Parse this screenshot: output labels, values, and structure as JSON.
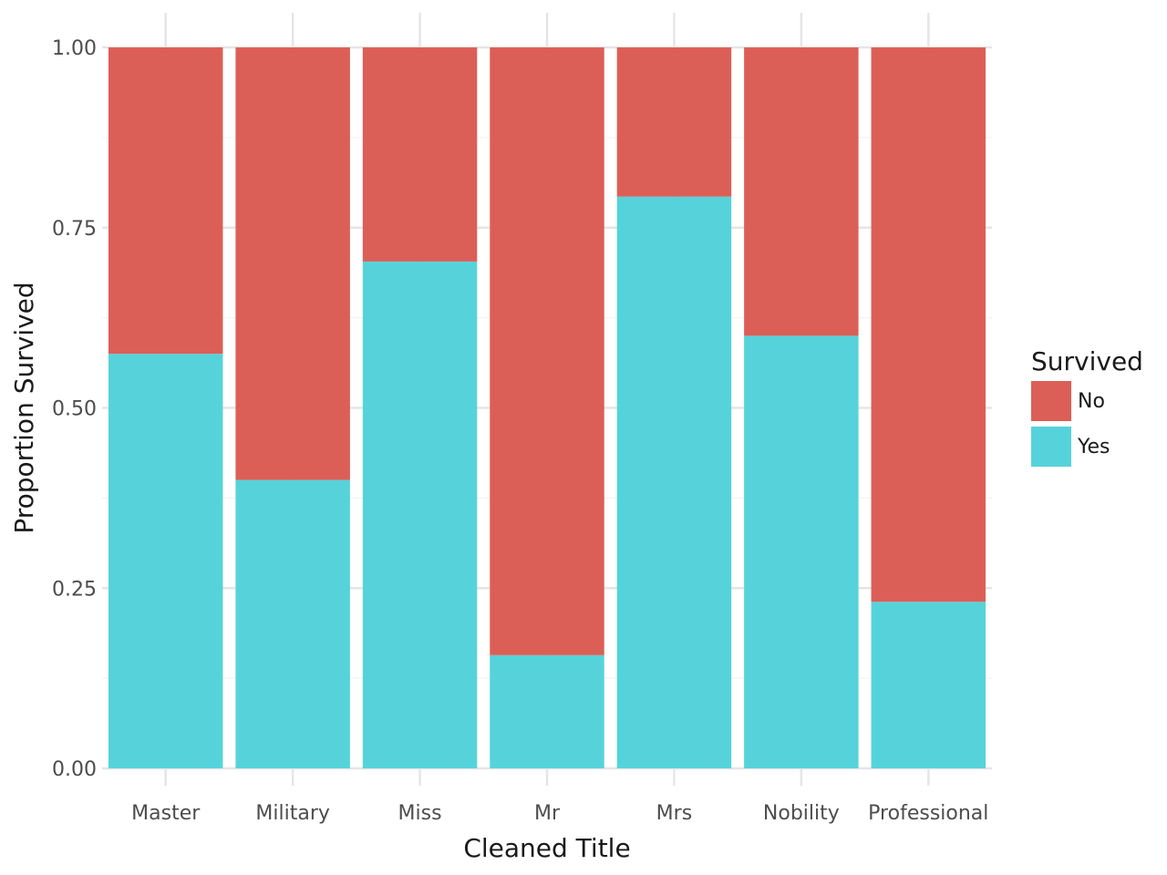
{
  "chart_data": {
    "type": "bar",
    "stacked": true,
    "title": "",
    "xlabel": "Cleaned Title",
    "ylabel": "Proportion Survived",
    "categories": [
      "Master",
      "Military",
      "Miss",
      "Mr",
      "Mrs",
      "Nobility",
      "Professional"
    ],
    "series": [
      {
        "name": "Yes",
        "color": "#56d3da",
        "values": [
          0.575,
          0.4,
          0.703,
          0.157,
          0.793,
          0.6,
          0.231
        ]
      },
      {
        "name": "No",
        "color": "#dc5f57",
        "values": [
          0.425,
          0.6,
          0.297,
          0.843,
          0.207,
          0.4,
          0.769
        ]
      }
    ],
    "ylim": [
      0,
      1
    ],
    "yticks": [
      0,
      0.25,
      0.5,
      0.75,
      1
    ],
    "ytick_labels": [
      "0.00",
      "0.25",
      "0.50",
      "0.75",
      "1.00"
    ],
    "grid": true,
    "legend": {
      "title": "Survived",
      "placement": "right",
      "entries": [
        {
          "label": "No",
          "color": "#dc5f57"
        },
        {
          "label": "Yes",
          "color": "#56d3da"
        }
      ]
    }
  }
}
